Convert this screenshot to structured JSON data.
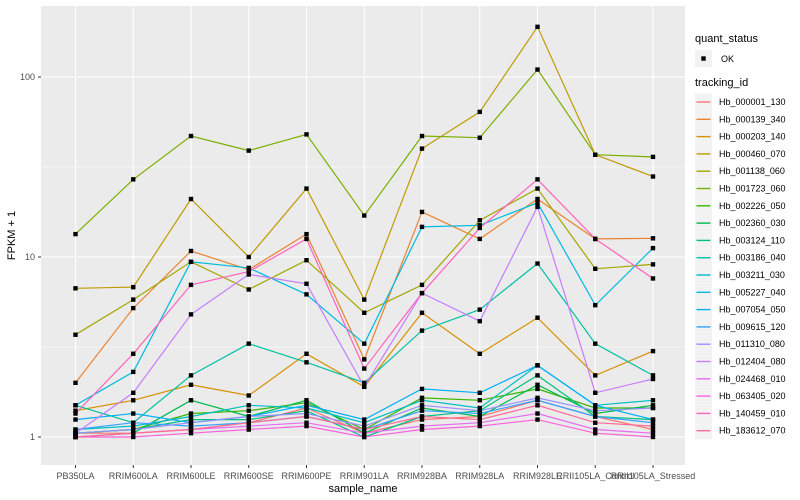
{
  "figure": {
    "background": "#FFFFFF",
    "panel_background": "#EBEBEB",
    "grid_color": "#FFFFFF",
    "tick_label_color": "#4D4D4D",
    "axis_title_color": "#000000",
    "point_color": "#000000"
  },
  "legend": {
    "quant_status_title": "quant_status",
    "ok_label": "OK",
    "tracking_id_title": "tracking_id",
    "key_fill": "#F2F2F2"
  },
  "chart_data": {
    "type": "line",
    "title": "",
    "xlabel": "sample_name",
    "ylabel": "FPKM + 1",
    "y_scale": "log10",
    "y_ticks": [
      1,
      10,
      100
    ],
    "y_minor_ticks": [
      3.162,
      31.62
    ],
    "ylim": [
      0.7,
      250
    ],
    "grid": true,
    "legend_position": "right",
    "marker": "black-square",
    "categories": [
      "PB350LA",
      "RRIM600LA",
      "RRIM600LE",
      "RRIM600SE",
      "RRIM600PE",
      "RRIM901LA",
      "RRIM928BA",
      "RRIM928LA",
      "RRIM928LE",
      "RRII105LA_Control",
      "RRII105LA_Stressed"
    ],
    "series": [
      {
        "name": "Hb_000001_130",
        "color": "#F8766D",
        "values": [
          1.05,
          1.05,
          1.1,
          1.2,
          1.45,
          1.05,
          1.25,
          1.3,
          1.6,
          1.3,
          1.1
        ]
      },
      {
        "name": "Hb_000139_340",
        "color": "#EA8331",
        "values": [
          2.0,
          5.2,
          10.8,
          8.5,
          13.4,
          2.7,
          17.8,
          12.6,
          21,
          12.6,
          12.7
        ]
      },
      {
        "name": "Hb_000203_140",
        "color": "#D89000",
        "values": [
          1.4,
          1.6,
          1.95,
          1.7,
          2.9,
          1.9,
          4.9,
          2.9,
          4.6,
          2.2,
          3.0
        ]
      },
      {
        "name": "Hb_000460_070",
        "color": "#C09B00",
        "values": [
          6.7,
          6.8,
          21,
          10,
          24,
          5.8,
          40,
          64,
          190,
          37,
          28
        ]
      },
      {
        "name": "Hb_001138_060",
        "color": "#A3A500",
        "values": [
          3.7,
          5.8,
          9.4,
          6.6,
          9.6,
          4.9,
          7.0,
          16,
          24,
          8.6,
          9.1
        ]
      },
      {
        "name": "Hb_001723_060",
        "color": "#7CAE00",
        "values": [
          13.4,
          27,
          47,
          39,
          48,
          17,
          47,
          46,
          110,
          37,
          36
        ]
      },
      {
        "name": "Hb_002226_050",
        "color": "#39B600",
        "values": [
          1.05,
          1.1,
          1.35,
          1.4,
          1.55,
          1.1,
          1.65,
          1.6,
          1.85,
          1.45,
          1.45
        ]
      },
      {
        "name": "Hb_002360_030",
        "color": "#00BB4E",
        "values": [
          1.0,
          1.05,
          1.6,
          1.3,
          1.6,
          1.05,
          1.45,
          1.3,
          1.95,
          1.35,
          1.5
        ]
      },
      {
        "name": "Hb_003124_110",
        "color": "#00BF7D",
        "values": [
          1.05,
          1.1,
          1.25,
          1.25,
          1.4,
          1.0,
          1.3,
          1.4,
          2.2,
          1.3,
          1.25
        ]
      },
      {
        "name": "Hb_003186_040",
        "color": "#00C1A3",
        "values": [
          1.5,
          1.2,
          2.2,
          3.3,
          2.6,
          2.0,
          3.9,
          5.1,
          9.2,
          3.3,
          2.2
        ]
      },
      {
        "name": "Hb_003211_030",
        "color": "#00BFC4",
        "values": [
          1.1,
          1.15,
          1.3,
          1.5,
          1.45,
          1.2,
          1.6,
          1.45,
          2.5,
          1.5,
          1.6
        ]
      },
      {
        "name": "Hb_005227_040",
        "color": "#00BAE0",
        "values": [
          1.5,
          2.3,
          9.4,
          8.7,
          6.2,
          3.3,
          14.7,
          15,
          20,
          5.4,
          11.2
        ]
      },
      {
        "name": "Hb_007054_050",
        "color": "#00B0F6",
        "values": [
          1.25,
          1.35,
          1.2,
          1.3,
          1.5,
          1.25,
          1.85,
          1.76,
          2.5,
          1.5,
          1.25
        ]
      },
      {
        "name": "Hb_009615_120",
        "color": "#35A2FF",
        "values": [
          1.1,
          1.2,
          1.15,
          1.2,
          1.3,
          1.1,
          1.4,
          1.35,
          1.6,
          1.3,
          1.2
        ]
      },
      {
        "name": "Hb_011310_080",
        "color": "#9590FF",
        "values": [
          1.05,
          1.1,
          1.2,
          1.3,
          1.35,
          1.15,
          1.5,
          1.4,
          1.65,
          1.4,
          1.45
        ]
      },
      {
        "name": "Hb_012404_080",
        "color": "#C77CFF",
        "values": [
          1.05,
          1.76,
          4.8,
          8.0,
          7.1,
          1.9,
          6.3,
          4.4,
          19,
          1.76,
          2.1
        ]
      },
      {
        "name": "Hb_024468_010",
        "color": "#E76BF3",
        "values": [
          1.0,
          1.05,
          1.1,
          1.15,
          1.2,
          1.05,
          1.15,
          1.2,
          1.35,
          1.1,
          1.05
        ]
      },
      {
        "name": "Hb_063405_020",
        "color": "#FA62DB",
        "values": [
          1.0,
          1.0,
          1.05,
          1.1,
          1.15,
          1.0,
          1.1,
          1.15,
          1.25,
          1.05,
          1.0
        ]
      },
      {
        "name": "Hb_140459_010",
        "color": "#FF62BC",
        "values": [
          1.35,
          2.9,
          7.0,
          8.3,
          12.6,
          2.4,
          6.3,
          14.5,
          27,
          12.6,
          7.6
        ]
      },
      {
        "name": "Hb_183612_070",
        "color": "#FF6A98",
        "values": [
          1.0,
          1.05,
          1.1,
          1.2,
          1.3,
          1.1,
          1.3,
          1.25,
          1.5,
          1.2,
          1.15
        ]
      }
    ]
  }
}
